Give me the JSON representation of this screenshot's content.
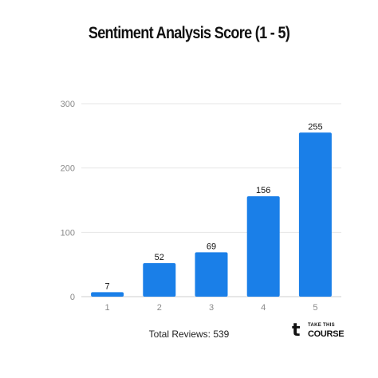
{
  "chart_data": {
    "type": "bar",
    "title": "Sentiment Analysis Score (1 - 5)",
    "categories": [
      "1",
      "2",
      "3",
      "4",
      "5"
    ],
    "values": [
      7,
      52,
      69,
      156,
      255
    ],
    "data_labels": [
      "7",
      "52",
      "69",
      "156",
      "255"
    ],
    "yticks": [
      "0",
      "100",
      "200",
      "300"
    ],
    "ylim": [
      0,
      300
    ],
    "grid": true,
    "xlabel": "",
    "ylabel": "",
    "bar_color": "#1a7fe8",
    "footer": "Total Reviews: 539"
  },
  "logo": {
    "mark": "t",
    "top_text": "TAKE THIS",
    "main_text": "COURSE"
  }
}
